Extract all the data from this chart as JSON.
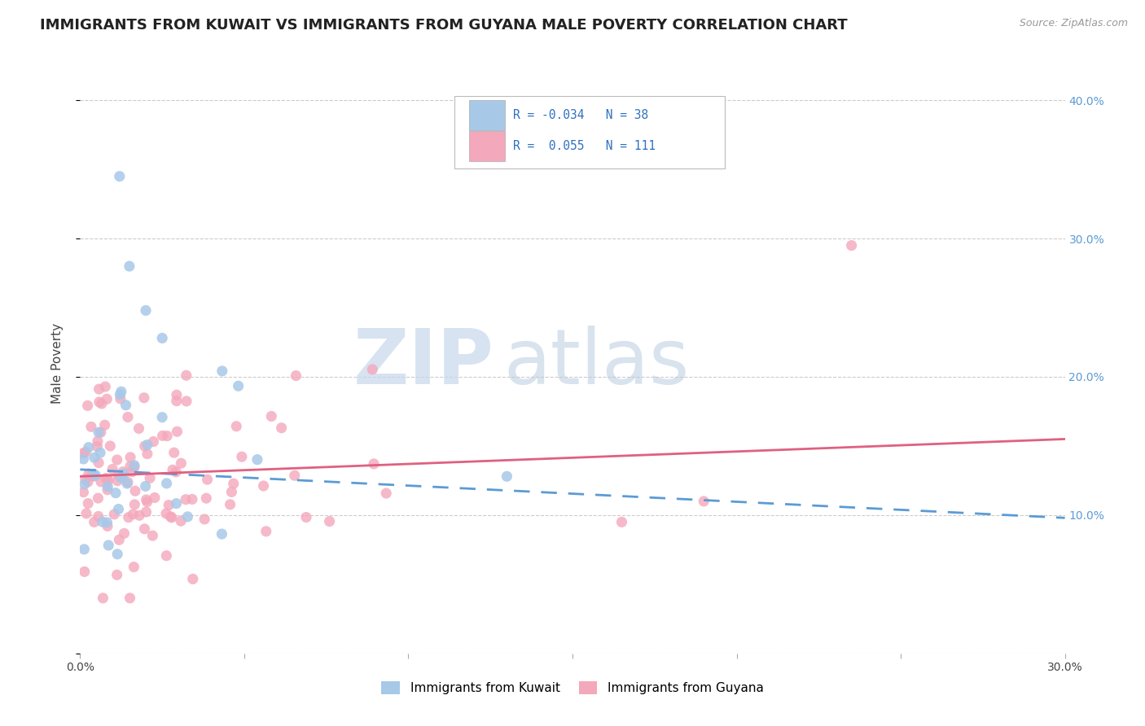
{
  "title": "IMMIGRANTS FROM KUWAIT VS IMMIGRANTS FROM GUYANA MALE POVERTY CORRELATION CHART",
  "source": "Source: ZipAtlas.com",
  "ylabel": "Male Poverty",
  "xlim": [
    0.0,
    0.3
  ],
  "ylim": [
    0.0,
    0.42
  ],
  "kuwait_R": -0.034,
  "kuwait_N": 38,
  "guyana_R": 0.055,
  "guyana_N": 111,
  "kuwait_color": "#a8c8e8",
  "guyana_color": "#f4a8bc",
  "kuwait_line_color": "#5b9bd5",
  "guyana_line_color": "#e06080",
  "legend_label_kuwait": "Immigrants from Kuwait",
  "legend_label_guyana": "Immigrants from Guyana",
  "watermark_zip": "ZIP",
  "watermark_atlas": "atlas",
  "background_color": "#ffffff",
  "grid_color": "#cccccc",
  "title_fontsize": 13,
  "axis_label_fontsize": 11,
  "tick_fontsize": 10,
  "tick_color": "#5b9bd5",
  "kuwait_line_start_y": 0.133,
  "kuwait_line_end_y": 0.098,
  "guyana_line_start_y": 0.128,
  "guyana_line_end_y": 0.155
}
